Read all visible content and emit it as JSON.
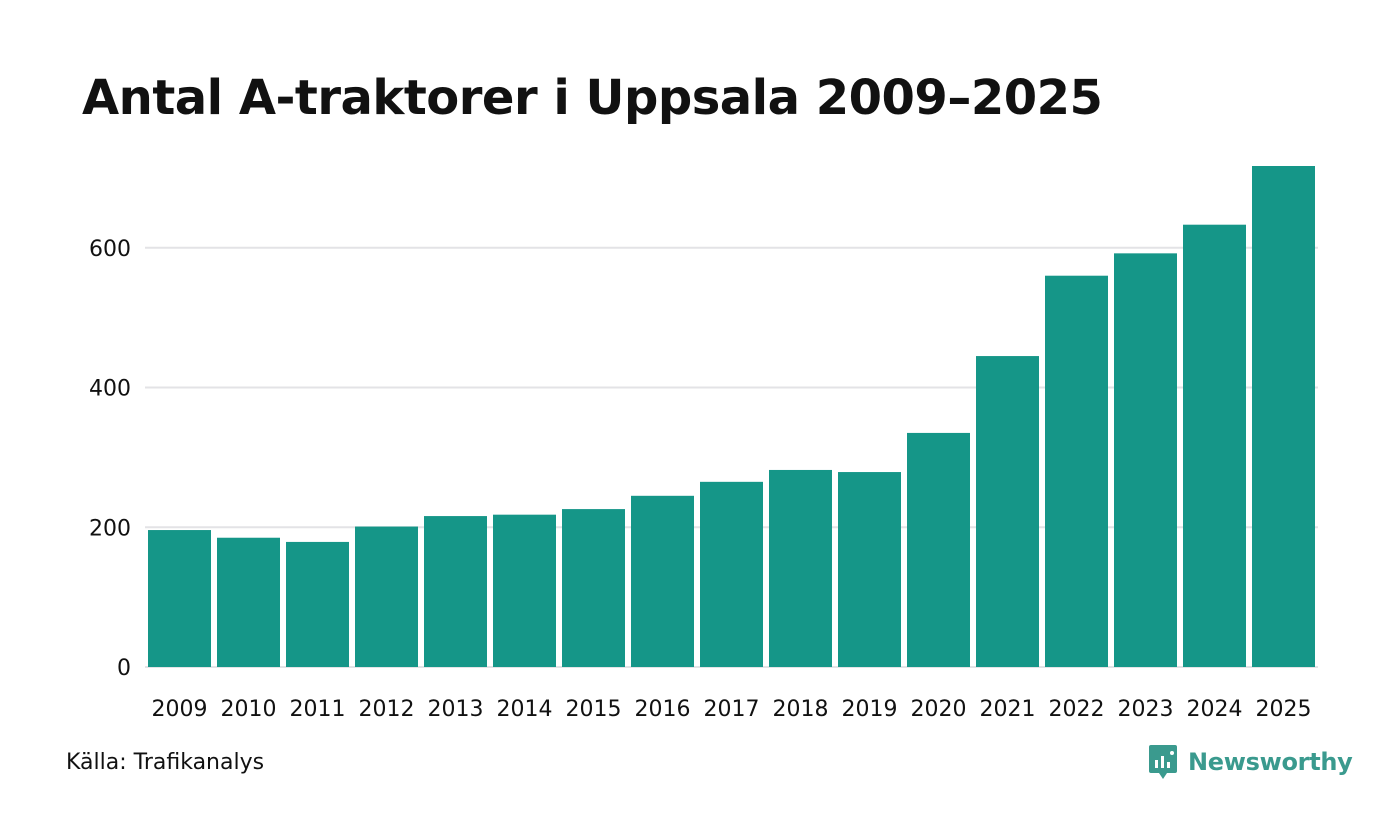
{
  "chart_data": {
    "type": "bar",
    "title": "Antal A-traktorer i Uppsala 2009–2025",
    "categories": [
      "2009",
      "2010",
      "2011",
      "2012",
      "2013",
      "2014",
      "2015",
      "2016",
      "2017",
      "2018",
      "2019",
      "2020",
      "2021",
      "2022",
      "2023",
      "2024",
      "2025"
    ],
    "values": [
      196,
      185,
      179,
      201,
      216,
      218,
      226,
      245,
      265,
      282,
      279,
      335,
      445,
      560,
      592,
      633,
      717
    ],
    "yticks": [
      0,
      200,
      400,
      600
    ],
    "ylim": [
      0,
      717
    ],
    "xlabel": "",
    "ylabel": "",
    "grid": true,
    "bar_color": "#159688",
    "grid_color": "#e3e3e6"
  },
  "footer": {
    "source": "Källa: Trafikanalys",
    "brand": "Newsworthy",
    "brand_icon": "newsworthy-logo-icon",
    "brand_color": "#3a9a8e"
  }
}
